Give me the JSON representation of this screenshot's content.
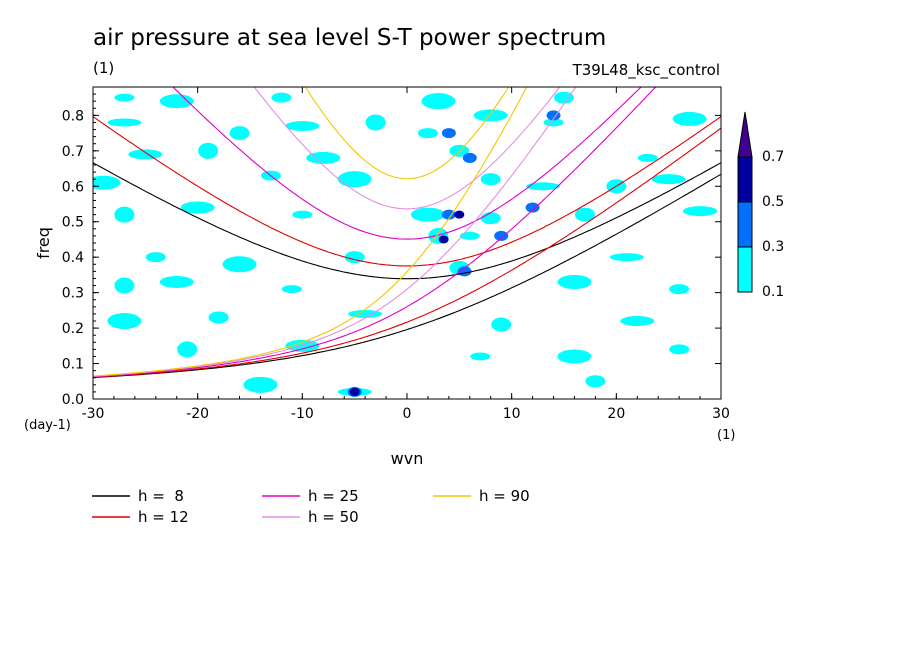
{
  "chart_data": {
    "type": "heatmap",
    "title": "air pressure at sea level S-T power spectrum",
    "title_unit": "(1)",
    "subtitle": "T39L48_ksc_control",
    "xlabel": "wvn",
    "ylabel": "freq",
    "x_unit": "(1)",
    "y_unit": "(day-1)",
    "xlim": [
      -30,
      30
    ],
    "ylim": [
      0,
      0.88
    ],
    "x_ticks": [
      -30,
      -20,
      -10,
      0,
      10,
      20,
      30
    ],
    "y_ticks": [
      0.0,
      0.1,
      0.2,
      0.3,
      0.4,
      0.5,
      0.6,
      0.7,
      0.8
    ],
    "x_tick_labels": [
      "-30",
      "-20",
      "-10",
      "0",
      "10",
      "20",
      "30"
    ],
    "y_tick_labels": [
      "0.0",
      "0.1",
      "0.2",
      "0.3",
      "0.4",
      "0.5",
      "0.6",
      "0.7",
      "0.8"
    ],
    "colorbar": {
      "levels": [
        0.1,
        0.3,
        0.5,
        0.7
      ],
      "level_labels": [
        "0.1",
        "0.3",
        "0.5",
        "0.7"
      ],
      "colors": [
        "#00ffff",
        "#0070ff",
        "#0000a0",
        "#400090"
      ]
    },
    "contour_blobs": [
      {
        "x": -27,
        "y": 0.85,
        "level": 1
      },
      {
        "x": -22,
        "y": 0.84,
        "level": 1
      },
      {
        "x": -12,
        "y": 0.85,
        "level": 1
      },
      {
        "x": 3,
        "y": 0.84,
        "level": 1
      },
      {
        "x": 15,
        "y": 0.85,
        "level": 1
      },
      {
        "x": -27,
        "y": 0.78,
        "level": 1
      },
      {
        "x": -16,
        "y": 0.75,
        "level": 1
      },
      {
        "x": -10,
        "y": 0.77,
        "level": 1
      },
      {
        "x": -3,
        "y": 0.78,
        "level": 1
      },
      {
        "x": 8,
        "y": 0.8,
        "level": 1
      },
      {
        "x": 14,
        "y": 0.78,
        "level": 1
      },
      {
        "x": 27,
        "y": 0.79,
        "level": 1
      },
      {
        "x": 2,
        "y": 0.75,
        "level": 1
      },
      {
        "x": 4,
        "y": 0.75,
        "level": 2
      },
      {
        "x": 5,
        "y": 0.7,
        "level": 1
      },
      {
        "x": 6,
        "y": 0.68,
        "level": 2
      },
      {
        "x": 14,
        "y": 0.8,
        "level": 2
      },
      {
        "x": -25,
        "y": 0.69,
        "level": 1
      },
      {
        "x": -19,
        "y": 0.7,
        "level": 1
      },
      {
        "x": -8,
        "y": 0.68,
        "level": 1
      },
      {
        "x": 23,
        "y": 0.68,
        "level": 1
      },
      {
        "x": -29,
        "y": 0.61,
        "level": 1
      },
      {
        "x": -13,
        "y": 0.63,
        "level": 1
      },
      {
        "x": -5,
        "y": 0.62,
        "level": 1
      },
      {
        "x": 8,
        "y": 0.62,
        "level": 1
      },
      {
        "x": 13,
        "y": 0.6,
        "level": 1
      },
      {
        "x": 20,
        "y": 0.6,
        "level": 1
      },
      {
        "x": 25,
        "y": 0.62,
        "level": 1
      },
      {
        "x": -27,
        "y": 0.52,
        "level": 1
      },
      {
        "x": -20,
        "y": 0.54,
        "level": 1
      },
      {
        "x": -10,
        "y": 0.52,
        "level": 1
      },
      {
        "x": 2,
        "y": 0.52,
        "level": 1
      },
      {
        "x": 4,
        "y": 0.52,
        "level": 2
      },
      {
        "x": 5,
        "y": 0.52,
        "level": 3
      },
      {
        "x": 8,
        "y": 0.51,
        "level": 1
      },
      {
        "x": 12,
        "y": 0.54,
        "level": 2
      },
      {
        "x": 17,
        "y": 0.52,
        "level": 1
      },
      {
        "x": 28,
        "y": 0.53,
        "level": 1
      },
      {
        "x": 3,
        "y": 0.46,
        "level": 1
      },
      {
        "x": 3.5,
        "y": 0.45,
        "level": 3
      },
      {
        "x": 6,
        "y": 0.46,
        "level": 1
      },
      {
        "x": 9,
        "y": 0.46,
        "level": 2
      },
      {
        "x": -24,
        "y": 0.4,
        "level": 1
      },
      {
        "x": -16,
        "y": 0.38,
        "level": 1
      },
      {
        "x": -5,
        "y": 0.4,
        "level": 1
      },
      {
        "x": 21,
        "y": 0.4,
        "level": 1
      },
      {
        "x": 5,
        "y": 0.37,
        "level": 1
      },
      {
        "x": 5.5,
        "y": 0.36,
        "level": 2
      },
      {
        "x": -27,
        "y": 0.32,
        "level": 1
      },
      {
        "x": -22,
        "y": 0.33,
        "level": 1
      },
      {
        "x": -11,
        "y": 0.31,
        "level": 1
      },
      {
        "x": 16,
        "y": 0.33,
        "level": 1
      },
      {
        "x": 26,
        "y": 0.31,
        "level": 1
      },
      {
        "x": -27,
        "y": 0.22,
        "level": 1
      },
      {
        "x": -18,
        "y": 0.23,
        "level": 1
      },
      {
        "x": -4,
        "y": 0.24,
        "level": 1
      },
      {
        "x": 9,
        "y": 0.21,
        "level": 1
      },
      {
        "x": 22,
        "y": 0.22,
        "level": 1
      },
      {
        "x": -21,
        "y": 0.14,
        "level": 1
      },
      {
        "x": -10,
        "y": 0.15,
        "level": 1
      },
      {
        "x": 7,
        "y": 0.12,
        "level": 1
      },
      {
        "x": 16,
        "y": 0.12,
        "level": 1
      },
      {
        "x": 26,
        "y": 0.14,
        "level": 1
      },
      {
        "x": -14,
        "y": 0.04,
        "level": 1
      },
      {
        "x": 18,
        "y": 0.05,
        "level": 1
      },
      {
        "x": -5,
        "y": 0.02,
        "level": 1
      },
      {
        "x": -5,
        "y": 0.02,
        "level": 2
      },
      {
        "x": -5,
        "y": 0.02,
        "level": 3
      }
    ],
    "series": [
      {
        "name": "h =  8",
        "color": "#000000",
        "h": 8
      },
      {
        "name": "h = 12",
        "color": "#e00000",
        "h": 12
      },
      {
        "name": "h = 25",
        "color": "#e000c8",
        "h": 25
      },
      {
        "name": "h = 50",
        "color": "#e090e0",
        "h": 50
      },
      {
        "name": "h = 90",
        "color": "#f0c800",
        "h": 90
      }
    ]
  }
}
